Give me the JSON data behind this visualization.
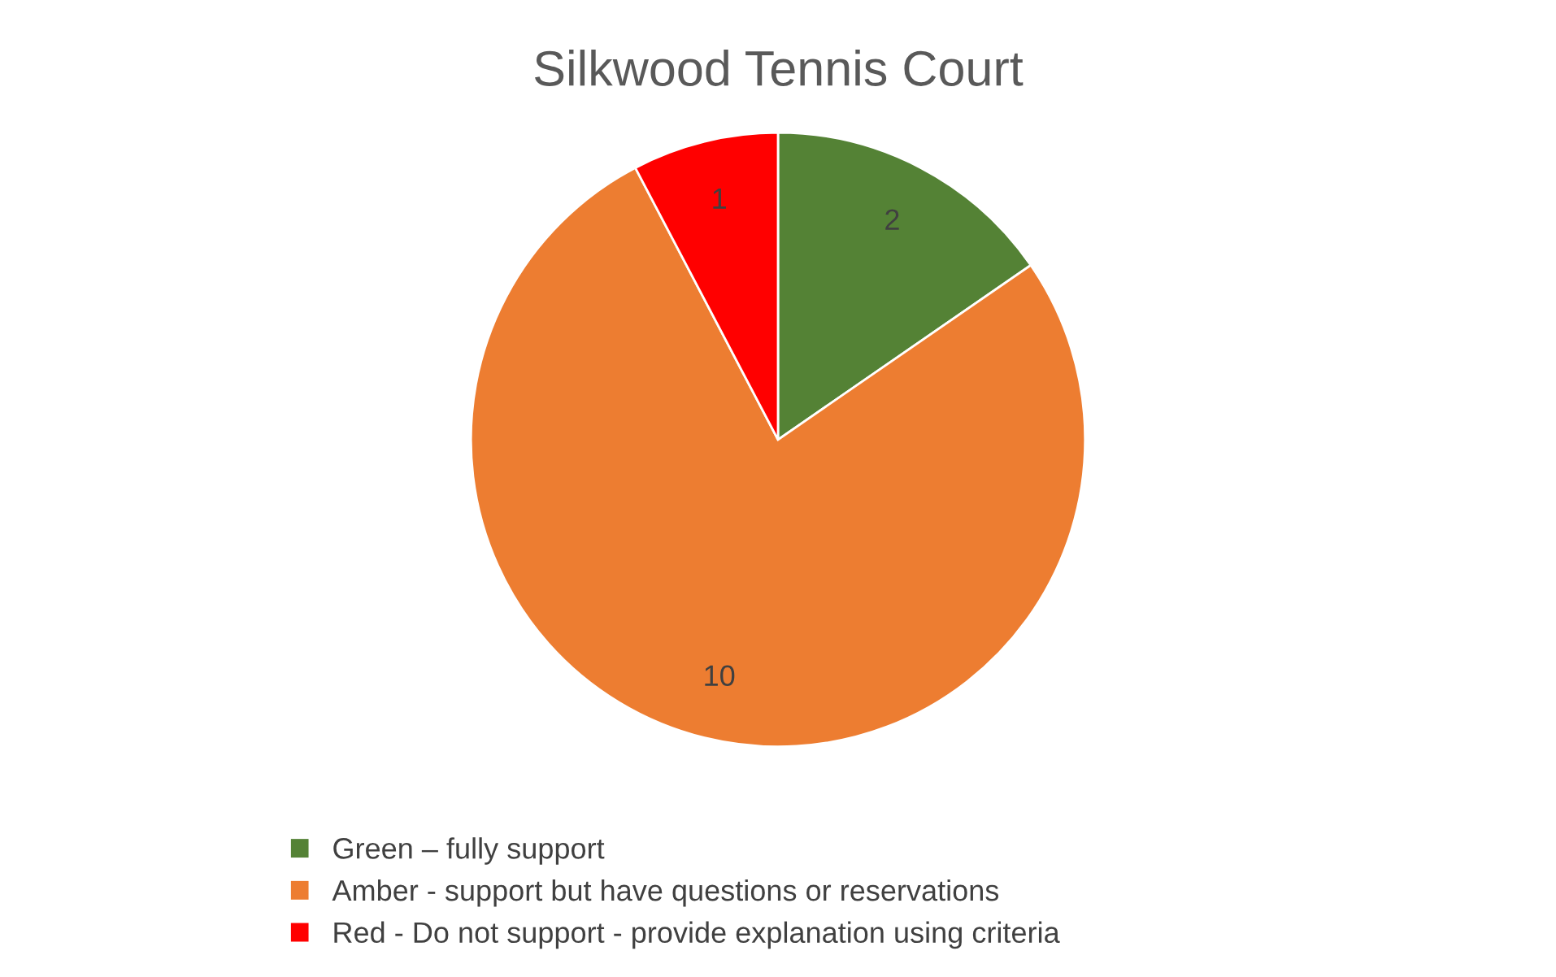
{
  "chart_data": {
    "type": "pie",
    "title": "Silkwood Tennis Court",
    "categories": [
      "Green – fully support",
      "Amber - support but have questions or reservations",
      "Red - Do not support - provide explanation using criteria"
    ],
    "values": [
      2,
      10,
      1
    ],
    "colors": [
      "#548235",
      "#ed7d31",
      "#ff0000"
    ],
    "data_labels": true,
    "legend": "bottom"
  }
}
